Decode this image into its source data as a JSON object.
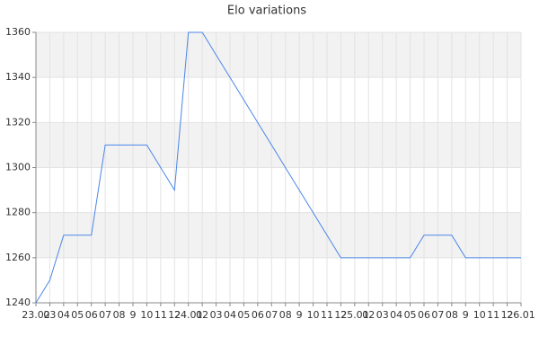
{
  "chart_data": {
    "type": "line",
    "title": "Elo variations",
    "categories": [
      "23.02",
      "03",
      "04",
      "05",
      "06",
      "07",
      "08",
      "9",
      "10",
      "11",
      "12",
      "24.01",
      "02",
      "03",
      "04",
      "05",
      "06",
      "07",
      "08",
      "9",
      "10",
      "11",
      "12",
      "25.01",
      "02",
      "03",
      "04",
      "05",
      "06",
      "07",
      "08",
      "9",
      "10",
      "11",
      "12",
      "26.01"
    ],
    "series": [
      {
        "name": "Elo",
        "color": "#4a86e8",
        "values": [
          1240,
          1250,
          1270,
          1270,
          1270,
          1310,
          1310,
          1310,
          1310,
          1300,
          1290,
          1360,
          1360,
          1350,
          1340,
          1330,
          1320,
          1310,
          1300,
          1290,
          1280,
          1270,
          1260,
          1260,
          1260,
          1260,
          1260,
          1260,
          1270,
          1270,
          1270,
          1260,
          1260,
          1260,
          1260,
          1260
        ]
      }
    ],
    "ylim": [
      1240,
      1360
    ],
    "yticks": [
      1240,
      1260,
      1280,
      1300,
      1320,
      1340,
      1360
    ],
    "grid": true
  }
}
